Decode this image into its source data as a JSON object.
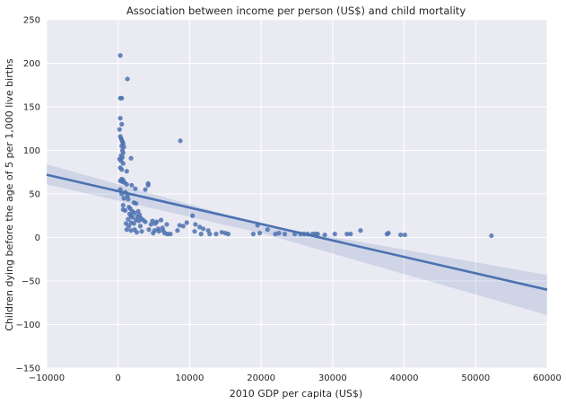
{
  "chart_data": {
    "type": "scatter",
    "title": "Association between income per person (US$) and child mortality",
    "xlabel": "2010 GDP per capita (US$)",
    "ylabel": "Children dying before the age of 5 per 1,000 live births",
    "xlim": [
      -10000,
      60000
    ],
    "ylim": [
      -150,
      250
    ],
    "xticks": [
      -10000,
      0,
      10000,
      20000,
      30000,
      40000,
      50000,
      60000
    ],
    "yticks": [
      -150,
      -100,
      -50,
      0,
      50,
      100,
      150,
      200,
      250
    ],
    "xtick_labels": [
      "−10000",
      "0",
      "10000",
      "20000",
      "30000",
      "40000",
      "50000",
      "60000"
    ],
    "ytick_labels": [
      "−150",
      "−100",
      "−50",
      "0",
      "50",
      "100",
      "150",
      "200",
      "250"
    ],
    "grid": true,
    "colors": {
      "background": "#eaeaf2",
      "grid": "#ffffff",
      "points": "#4c72b0",
      "regression_line": "#4c72b0",
      "confidence_band": "#4c72b0"
    },
    "regression": {
      "line": [
        [
          -10000,
          72
        ],
        [
          60000,
          -60
        ]
      ],
      "ci_lower": [
        [
          -10000,
          61
        ],
        [
          20000,
          5
        ],
        [
          60000,
          -89
        ]
      ],
      "ci_upper": [
        [
          -10000,
          84
        ],
        [
          20000,
          15
        ],
        [
          60000,
          -43
        ]
      ]
    },
    "points": [
      [
        300,
        209
      ],
      [
        1300,
        182
      ],
      [
        300,
        160
      ],
      [
        500,
        160
      ],
      [
        8700,
        111
      ],
      [
        300,
        137
      ],
      [
        500,
        130
      ],
      [
        200,
        124
      ],
      [
        300,
        116
      ],
      [
        400,
        114
      ],
      [
        500,
        112
      ],
      [
        600,
        110
      ],
      [
        700,
        108
      ],
      [
        500,
        105
      ],
      [
        800,
        104
      ],
      [
        600,
        100
      ],
      [
        700,
        97
      ],
      [
        400,
        94
      ],
      [
        600,
        92
      ],
      [
        1800,
        91
      ],
      [
        200,
        90
      ],
      [
        400,
        88
      ],
      [
        700,
        85
      ],
      [
        300,
        80
      ],
      [
        500,
        78
      ],
      [
        1200,
        76
      ],
      [
        500,
        67
      ],
      [
        700,
        66
      ],
      [
        300,
        65
      ],
      [
        600,
        64
      ],
      [
        900,
        63
      ],
      [
        4200,
        62
      ],
      [
        4200,
        60
      ],
      [
        1200,
        61
      ],
      [
        1900,
        60
      ],
      [
        2400,
        56
      ],
      [
        300,
        55
      ],
      [
        3800,
        55
      ],
      [
        1000,
        52
      ],
      [
        500,
        50
      ],
      [
        1300,
        48
      ],
      [
        800,
        45
      ],
      [
        1400,
        44
      ],
      [
        2200,
        40
      ],
      [
        2500,
        39
      ],
      [
        700,
        37
      ],
      [
        1500,
        35
      ],
      [
        1700,
        33
      ],
      [
        700,
        32
      ],
      [
        1000,
        31
      ],
      [
        2000,
        30
      ],
      [
        2800,
        30
      ],
      [
        2300,
        28
      ],
      [
        1600,
        27
      ],
      [
        3000,
        26
      ],
      [
        10400,
        25
      ],
      [
        1800,
        25
      ],
      [
        2700,
        24
      ],
      [
        2000,
        23
      ],
      [
        3200,
        22
      ],
      [
        1400,
        21
      ],
      [
        2500,
        20
      ],
      [
        3500,
        20
      ],
      [
        6000,
        20
      ],
      [
        4800,
        19
      ],
      [
        2900,
        19
      ],
      [
        3800,
        18
      ],
      [
        5400,
        18
      ],
      [
        9600,
        17
      ],
      [
        1800,
        17
      ],
      [
        1100,
        16
      ],
      [
        2200,
        16
      ],
      [
        5200,
        16
      ],
      [
        4600,
        15
      ],
      [
        6800,
        15
      ],
      [
        10800,
        15
      ],
      [
        8600,
        14
      ],
      [
        9100,
        13
      ],
      [
        1500,
        13
      ],
      [
        3100,
        13
      ],
      [
        11400,
        12
      ],
      [
        19500,
        14
      ],
      [
        6200,
        11
      ],
      [
        11900,
        10
      ],
      [
        5600,
        10
      ],
      [
        1200,
        9
      ],
      [
        2300,
        9
      ],
      [
        4300,
        9
      ],
      [
        20900,
        9
      ],
      [
        5100,
        8
      ],
      [
        6300,
        8
      ],
      [
        12600,
        8
      ],
      [
        8300,
        8
      ],
      [
        1800,
        8
      ],
      [
        33900,
        8
      ],
      [
        3300,
        7
      ],
      [
        5700,
        7
      ],
      [
        10700,
        7
      ],
      [
        2600,
        6
      ],
      [
        14500,
        6
      ],
      [
        6500,
        5
      ],
      [
        15000,
        5
      ],
      [
        22500,
        5
      ],
      [
        4900,
        5
      ],
      [
        12800,
        4
      ],
      [
        15400,
        4
      ],
      [
        18900,
        4
      ],
      [
        22000,
        4
      ],
      [
        24700,
        4
      ],
      [
        25500,
        4
      ],
      [
        26500,
        4
      ],
      [
        27200,
        4
      ],
      [
        27900,
        4
      ],
      [
        30300,
        4
      ],
      [
        32500,
        4
      ],
      [
        37600,
        4
      ],
      [
        7300,
        4
      ],
      [
        6900,
        4
      ],
      [
        11600,
        4
      ],
      [
        13700,
        4
      ],
      [
        23300,
        4
      ],
      [
        26000,
        4
      ],
      [
        27600,
        4
      ],
      [
        32000,
        4
      ],
      [
        37800,
        5
      ],
      [
        39500,
        3
      ],
      [
        40100,
        3
      ],
      [
        52200,
        2
      ],
      [
        28900,
        3
      ],
      [
        19800,
        5
      ]
    ]
  }
}
